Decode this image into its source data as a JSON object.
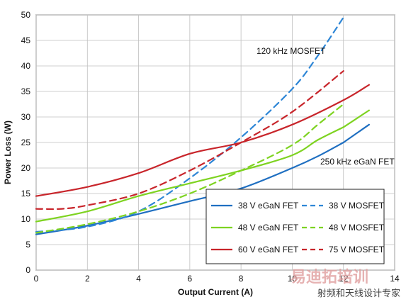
{
  "chart_data": {
    "type": "line",
    "xlabel": "Output Current (A)",
    "ylabel": "Power Loss (W)",
    "xlim": [
      0,
      14
    ],
    "ylim": [
      0,
      50
    ],
    "x_ticks": [
      "0",
      "2",
      "4",
      "6",
      "8",
      "10",
      "12",
      "14"
    ],
    "y_ticks": [
      "0",
      "5",
      "10",
      "15",
      "20",
      "25",
      "30",
      "35",
      "40",
      "45",
      "50"
    ],
    "grid": true,
    "legend_placement": "bottom-right",
    "annotations": [
      "120 kHz MOSFET",
      "250 kHz eGaN FET"
    ],
    "series": [
      {
        "name": "38 V eGaN FET",
        "color": "#1f6fc1",
        "dash": false,
        "x": [
          0,
          2,
          4,
          6,
          8,
          10,
          11,
          12
        ],
        "y": [
          7.0,
          8.7,
          11.0,
          13.5,
          16.0,
          20.0,
          22.3,
          25.0
        ]
      },
      {
        "name": "38 V MOSFET",
        "color": "#2e86d6",
        "dash": true,
        "x": [
          0,
          2,
          4,
          6,
          8,
          10,
          11,
          12
        ],
        "y": [
          7.5,
          8.5,
          11.5,
          18.0,
          26.0,
          35.5,
          42.0,
          49.5
        ]
      },
      {
        "name": "48 V eGaN FET",
        "color": "#7ed321",
        "dash": false,
        "x": [
          0,
          2,
          4,
          6,
          8,
          10,
          11,
          12
        ],
        "y": [
          9.5,
          11.5,
          14.5,
          17.0,
          19.5,
          22.5,
          25.5,
          28.0
        ]
      },
      {
        "name": "48 V MOSFET",
        "color": "#7ed321",
        "dash": true,
        "x": [
          0,
          2,
          4,
          6,
          8,
          10,
          11,
          12
        ],
        "y": [
          7.3,
          9.0,
          11.5,
          15.0,
          19.5,
          24.5,
          28.5,
          32.5
        ]
      },
      {
        "name": "60 V eGaN FET",
        "color": "#c8252b",
        "dash": false,
        "x": [
          0,
          2,
          4,
          6,
          8,
          10,
          12,
          13
        ],
        "y": [
          14.5,
          16.3,
          19.0,
          22.8,
          25.0,
          28.5,
          33.3,
          36.3
        ]
      },
      {
        "name": "75 V MOSFET",
        "color": "#c8252b",
        "dash": true,
        "x": [
          0,
          1,
          2,
          4,
          6,
          8,
          10,
          12
        ],
        "y": [
          12.0,
          12.0,
          12.7,
          15.0,
          19.5,
          25.0,
          31.0,
          39.0
        ]
      }
    ],
    "extra_series": [
      {
        "color": "#1f6fc1",
        "dash": false,
        "x": [
          12,
          13
        ],
        "y": [
          25.0,
          28.5
        ]
      },
      {
        "color": "#7ed321",
        "dash": false,
        "x": [
          12,
          13
        ],
        "y": [
          28.0,
          31.3
        ]
      }
    ]
  },
  "watermark": {
    "brand": "易迪拓培训",
    "sub": "射频和天线设计专家"
  }
}
